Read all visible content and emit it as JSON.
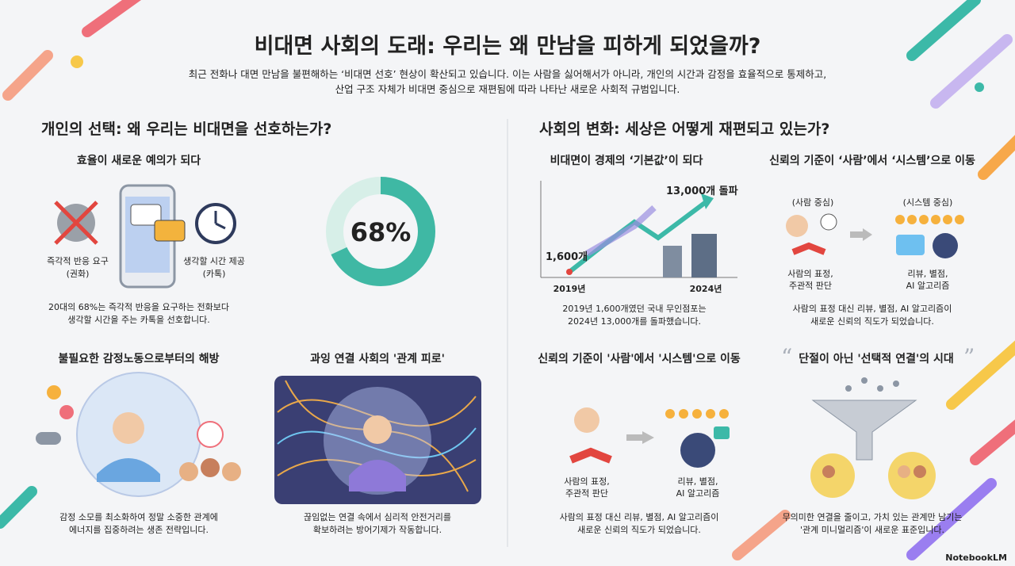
{
  "header": {
    "title": "비대면 사회의 도래: 우리는 왜 만남을 피하게 되었을까?",
    "subtitle": [
      "최근 전화나 대면 만남을 불편해하는 ‘비대면 선호’ 현상이 확산되고 있습니다. 이는 사람을 싫어해서가 아니라, 개인의 시간과 감정을 효율적으로 통제하고,",
      "산업 구조 자체가 비대면 중심으로 재편됨에 따라 나타난 새로운 사회적 규범입니다."
    ]
  },
  "left": {
    "heading": "개인의 선택: 왜 우리는 비대면을 선호하는가?",
    "efficiency": {
      "title": "효율이 새로운 예의가 되다",
      "call_label": [
        "즉각적 반응 요구",
        "(권화)"
      ],
      "chat_label": [
        "생각할 시간 제공",
        "(카톡)"
      ],
      "donut": {
        "value": 68,
        "label": "68%"
      },
      "caption": [
        "20대의 68%는 즉각적 반응을 요구하는 전화보다",
        "생각할 시간을 주는 카톡을 선호합니다."
      ]
    },
    "emotion": {
      "title": "불필요한 감정노동으로부터의 해방",
      "caption": [
        "감정 소모를 최소화하여 정말 소중한 관계에",
        "에너지를 집중하려는 생존 전략입니다."
      ]
    },
    "fatigue": {
      "title": "과잉 연결 사회의 '관계 피로'",
      "caption": [
        "끊임없는 연결 속에서 심리적 안전거리를",
        "확보하려는 방어기제가 작동합니다."
      ]
    }
  },
  "right": {
    "heading": "사회의 변화: 세상은 어떻게 재편되고 있는가?",
    "economy": {
      "title": "비대면이 경제의 ‘기본값’이 되다",
      "end_label": "13,000개 돌파",
      "start_label": "1,600개",
      "start_year": "2019년",
      "end_year": "2024년",
      "caption": [
        "2019년 1,600개였던 국내 무인점포는",
        "2024년 13,000개를 돌파했습니다."
      ]
    },
    "trust_top": {
      "title": "신뢰의 기준이 ‘사람’에서 ‘시스템’으로 이동",
      "left_tag": "(사람 중심)",
      "right_tag": "(시스템 중심)",
      "left_label": [
        "사람의 표정,",
        "주관적 판단"
      ],
      "right_label": [
        "리뷰, 별점,",
        "AI 알고리즘"
      ],
      "caption": [
        "사람의 표정 대신 리뷰, 별점, AI 알고리즘이",
        "새로운 신뢰의 직도가 되었습니다."
      ]
    },
    "trust_bottom": {
      "title": "신뢰의 기준이 '사람'에서 '시스템'으로 이동",
      "left_label": [
        "사람의 표정,",
        "주관적 판단"
      ],
      "right_label": [
        "리뷰, 별점,",
        "AI 알고리즘"
      ],
      "caption": [
        "사람의 표정 대신 리뷰, 별점, AI 알고리즘이",
        "새로운 신뢰의 직도가 되었습니다."
      ]
    },
    "selective": {
      "title": "단절이 아닌 '선택적 연결'의 시대",
      "caption": [
        "무의미한 연결을 줄이고, 가치 있는 관계만 남기는",
        "'관계 미니멀리즘'이 새로운 표준입니다."
      ]
    }
  },
  "footer": {
    "brand": "NotebookLM"
  }
}
